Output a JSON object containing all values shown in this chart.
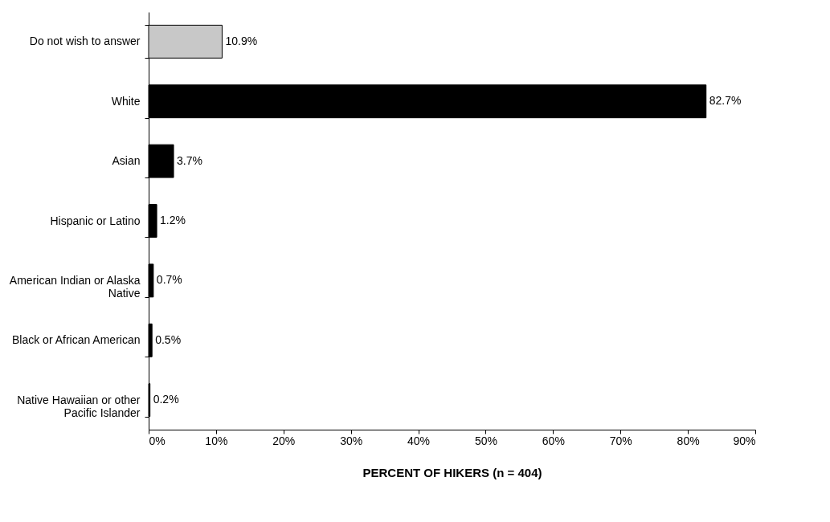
{
  "chart_data": {
    "type": "bar",
    "orientation": "horizontal",
    "xlabel": "PERCENT OF HIKERS (n = 404)",
    "categories": [
      "Do not wish to answer",
      "White",
      "Asian",
      "Hispanic or Latino",
      "American Indian or Alaska Native",
      "Black or African American",
      "Native Hawaiian or other Pacific Islander"
    ],
    "values": [
      10.9,
      82.7,
      3.7,
      1.2,
      0.7,
      0.5,
      0.2
    ],
    "value_labels": [
      "10.9%",
      "82.7%",
      "3.7%",
      "1.2%",
      "0.7%",
      "0.5%",
      "0.2%"
    ],
    "colors": [
      "#c8c8c8",
      "#000000",
      "#000000",
      "#000000",
      "#000000",
      "#000000",
      "#000000"
    ],
    "xlim": [
      0,
      90
    ],
    "xticks": [
      {
        "value": 0,
        "label": "0%"
      },
      {
        "value": 10,
        "label": "10%"
      },
      {
        "value": 20,
        "label": "20%"
      },
      {
        "value": 30,
        "label": "30%"
      },
      {
        "value": 40,
        "label": "40%"
      },
      {
        "value": 50,
        "label": "50%"
      },
      {
        "value": 60,
        "label": "60%"
      },
      {
        "value": 70,
        "label": "70%"
      },
      {
        "value": 80,
        "label": "80%"
      },
      {
        "value": 90,
        "label": "90%"
      }
    ],
    "grid": false
  }
}
